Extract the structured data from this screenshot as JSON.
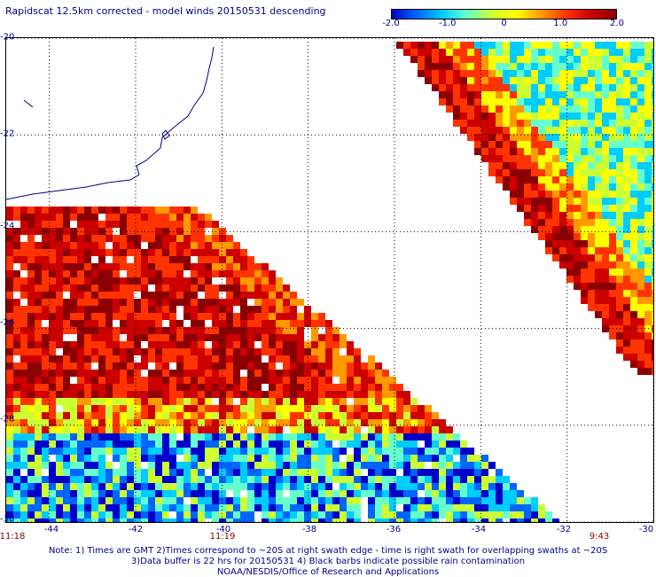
{
  "title": "Rapidscat 12.5km corrected - model winds 20150531 descending",
  "colorbar": {
    "ticks": [
      "-2.0",
      "-1.0",
      "0",
      "1.0",
      "2.0"
    ],
    "tick_values": [
      -2.0,
      -1.0,
      0,
      1.0,
      2.0
    ],
    "min": -2.0,
    "max": 2.0,
    "colors": [
      "#0000c8",
      "#0066ff",
      "#00ccff",
      "#66ffcc",
      "#ccff33",
      "#ffff00",
      "#ff9900",
      "#ff3300",
      "#cc0000",
      "#8b0000"
    ]
  },
  "axes": {
    "lat_labels": [
      "-20",
      "-22",
      "-24",
      "-26",
      "-28",
      "-30"
    ],
    "lat_values": [
      -20,
      -22,
      -24,
      -26,
      -28,
      -30
    ],
    "lon_labels": [
      "-44",
      "-42",
      "-40",
      "-38",
      "-36",
      "-34",
      "-32",
      "-30"
    ],
    "lon_values": [
      -44,
      -42,
      -40,
      -38,
      -36,
      -34,
      -32,
      -30
    ],
    "lat_range": [
      -30,
      -20
    ],
    "lon_range": [
      -45,
      -30
    ],
    "grid": true
  },
  "times": [
    "11:18",
    "11:19",
    "9:43"
  ],
  "notes": [
    "Note: 1) Times are GMT 2)Times correspond to ~20S at right swath edge - time is right swath for overlapping swaths at ~20S",
    "3)Data buffer is 22 hrs for 20150531 4) Black barbs indicate possible rain contamination",
    "NOAA/NESDIS/Office of Research and Applications"
  ]
}
